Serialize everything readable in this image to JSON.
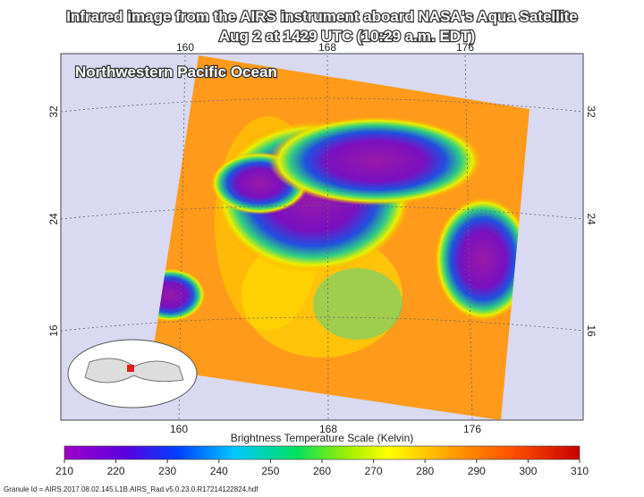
{
  "header": {
    "title_lines": [
      "Infrared image from the AIRS instrument aboard NASA's Aqua Satellite",
      "Aug 2 at 1429 UTC (10:29 a.m. EDT)"
    ]
  },
  "map": {
    "region_label": "Northwestern Pacific Ocean",
    "lon_labels_top": [
      "160",
      "168",
      "176"
    ],
    "lon_labels_bottom": [
      "160",
      "168",
      "176"
    ],
    "lat_labels_left": [
      "32",
      "24",
      "16"
    ],
    "lat_labels_right": [
      "32",
      "24",
      "16"
    ]
  },
  "colorbar": {
    "title": "Brightness Temperature Scale (Kelvin)",
    "ticks": [
      210,
      220,
      230,
      240,
      250,
      260,
      270,
      280,
      290,
      300,
      310
    ]
  },
  "footer": {
    "granule": "Granule Id = AIRS.2017.08.02.145.L1B.AIRS_Rad.v5.0.23.0.R17214122824.hdf"
  }
}
